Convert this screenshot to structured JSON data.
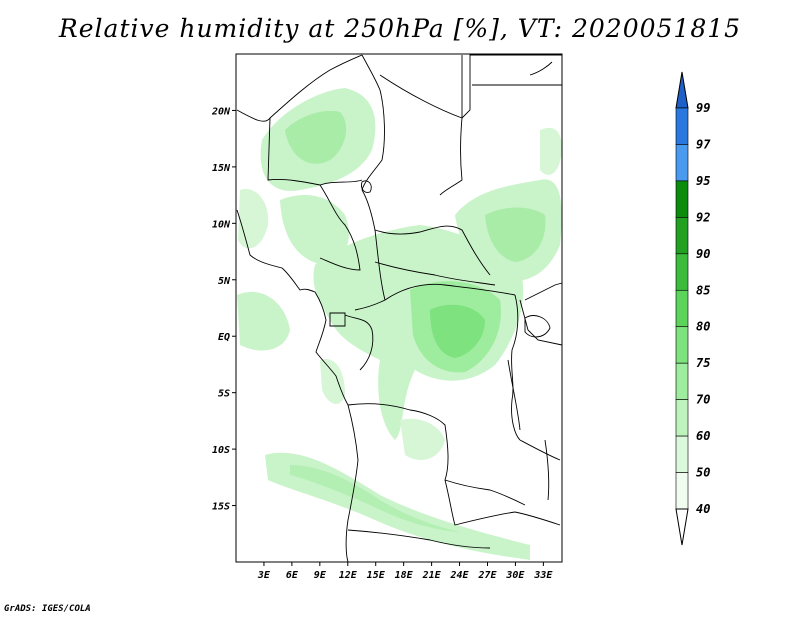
{
  "title": "Relative humidity at 250hPa [%], VT: 2020051815",
  "credit": "GrADS: IGES/COLA",
  "map": {
    "lon_range": [
      0,
      35
    ],
    "lat_range": [
      -20,
      25
    ],
    "lon_ticks": [
      "3E",
      "6E",
      "9E",
      "12E",
      "15E",
      "18E",
      "21E",
      "24E",
      "27E",
      "30E",
      "33E"
    ],
    "lon_tick_values": [
      3,
      6,
      9,
      12,
      15,
      18,
      21,
      24,
      27,
      30,
      33
    ],
    "lat_ticks": [
      "20N",
      "15N",
      "10N",
      "5N",
      "EQ",
      "5S",
      "10S",
      "15S"
    ],
    "lat_tick_values": [
      20,
      15,
      10,
      5,
      0,
      -5,
      -10,
      -15
    ]
  },
  "colorbar": {
    "labels": [
      "99",
      "97",
      "95",
      "92",
      "90",
      "85",
      "80",
      "75",
      "70",
      "60",
      "50",
      "40"
    ],
    "colors": [
      "#1e5fc8",
      "#2878e0",
      "#4a9af0",
      "#0c8c0c",
      "#22a022",
      "#3cbc3c",
      "#5cd45c",
      "#7ee27e",
      "#9eec9e",
      "#bef3be",
      "#dcf8dc",
      "#f0fcf0"
    ]
  }
}
